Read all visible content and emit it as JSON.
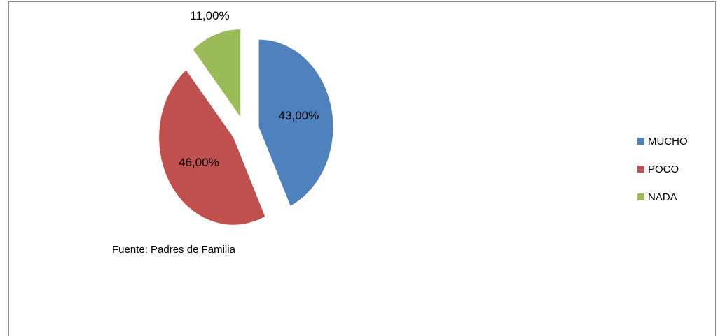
{
  "chart_data": {
    "type": "pie",
    "categories": [
      "MUCHO",
      "POCO",
      "NADA"
    ],
    "values": [
      43,
      46,
      11
    ],
    "value_labels": [
      "43,00%",
      "46,00%",
      "11,00%"
    ],
    "colors": [
      "#4f81bd",
      "#c0504d",
      "#9bbb59"
    ],
    "annotation": "Fuente: Padres de Familia",
    "legend": "right"
  }
}
